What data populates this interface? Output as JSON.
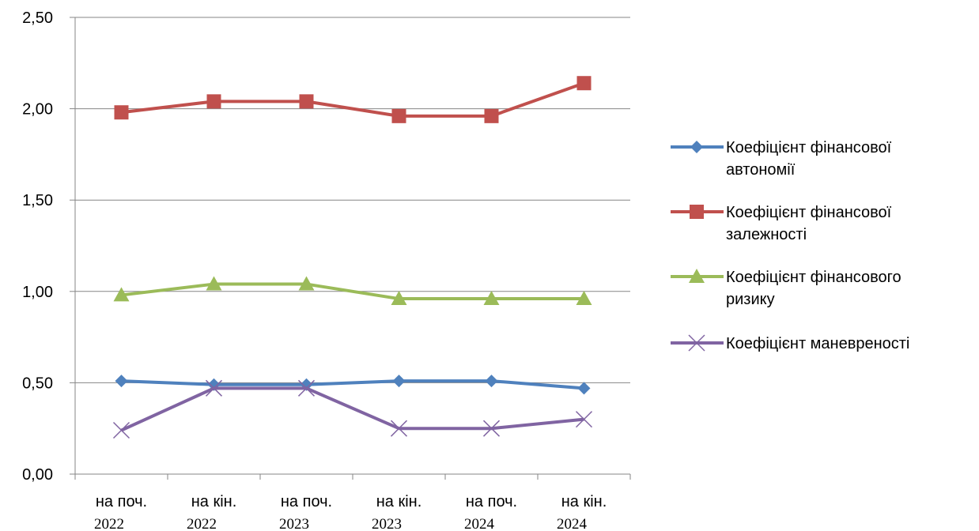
{
  "chart_data": {
    "type": "line",
    "categories": [
      {
        "label": "на поч.",
        "year": "2022"
      },
      {
        "label": "на кін.",
        "year": "2022"
      },
      {
        "label": "на поч.",
        "year": "2023"
      },
      {
        "label": "на кін.",
        "year": "2023"
      },
      {
        "label": "на поч.",
        "year": "2024"
      },
      {
        "label": "на кін.",
        "year": "2024"
      }
    ],
    "ylim": [
      0,
      2.5
    ],
    "yticks": [
      "0,00",
      "0,50",
      "1,00",
      "1,50",
      "2,00",
      "2,50"
    ],
    "grid": true,
    "legend_position": "right",
    "series": [
      {
        "name": "Коефіцієнт фінансової автономії",
        "legend_lines": [
          "Коефіцієнт фінансової",
          "автономії"
        ],
        "color": "#4f81bd",
        "marker": "diamond",
        "values": [
          0.51,
          0.49,
          0.49,
          0.51,
          0.51,
          0.47
        ]
      },
      {
        "name": "Коефіцієнт фінансової залежності",
        "legend_lines": [
          "Коефіцієнт фінансової",
          "залежності"
        ],
        "color": "#c0504d",
        "marker": "square",
        "values": [
          1.98,
          2.04,
          2.04,
          1.96,
          1.96,
          2.14
        ]
      },
      {
        "name": "Коефіцієнт фінансового ризику",
        "legend_lines": [
          "Коефіцієнт фінансового",
          "ризику"
        ],
        "color": "#9bbb59",
        "marker": "triangle",
        "values": [
          0.98,
          1.04,
          1.04,
          0.96,
          0.96,
          0.96
        ]
      },
      {
        "name": "Коефіцієнт маневреності",
        "legend_lines": [
          "Коефіцієнт маневреності"
        ],
        "color": "#8064a2",
        "marker": "x",
        "values": [
          0.24,
          0.47,
          0.47,
          0.25,
          0.25,
          0.3
        ]
      }
    ]
  }
}
